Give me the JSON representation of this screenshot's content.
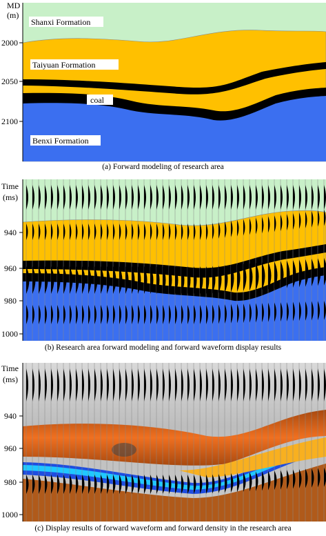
{
  "panel_a": {
    "y_label_line1": "MD",
    "y_label_line2": "(m)",
    "ticks": [
      "2000",
      "2050",
      "2100"
    ],
    "labels": {
      "shanxi": "Shanxi Formation",
      "taiyuan": "Taiyuan Formation",
      "coal": "coal",
      "benxi": "Benxi Formation"
    },
    "caption": "(a)  Forward modeling of research area"
  },
  "panel_b": {
    "y_label_line1": "Time",
    "y_label_line2": "(ms)",
    "ticks": [
      "940",
      "960",
      "980",
      "1000"
    ],
    "caption": "(b)  Research area forward modeling and forward waveform display results"
  },
  "panel_c": {
    "y_label_line1": "Time",
    "y_label_line2": "(ms)",
    "ticks": [
      "940",
      "960",
      "980",
      "1000"
    ],
    "caption": "(c)  Display results of forward waveform and forward density in the research area"
  },
  "colors": {
    "shanxi": "#c8f0c8",
    "taiyuan": "#ffc000",
    "coal": "#000000",
    "benxi": "#3b6ff0"
  }
}
